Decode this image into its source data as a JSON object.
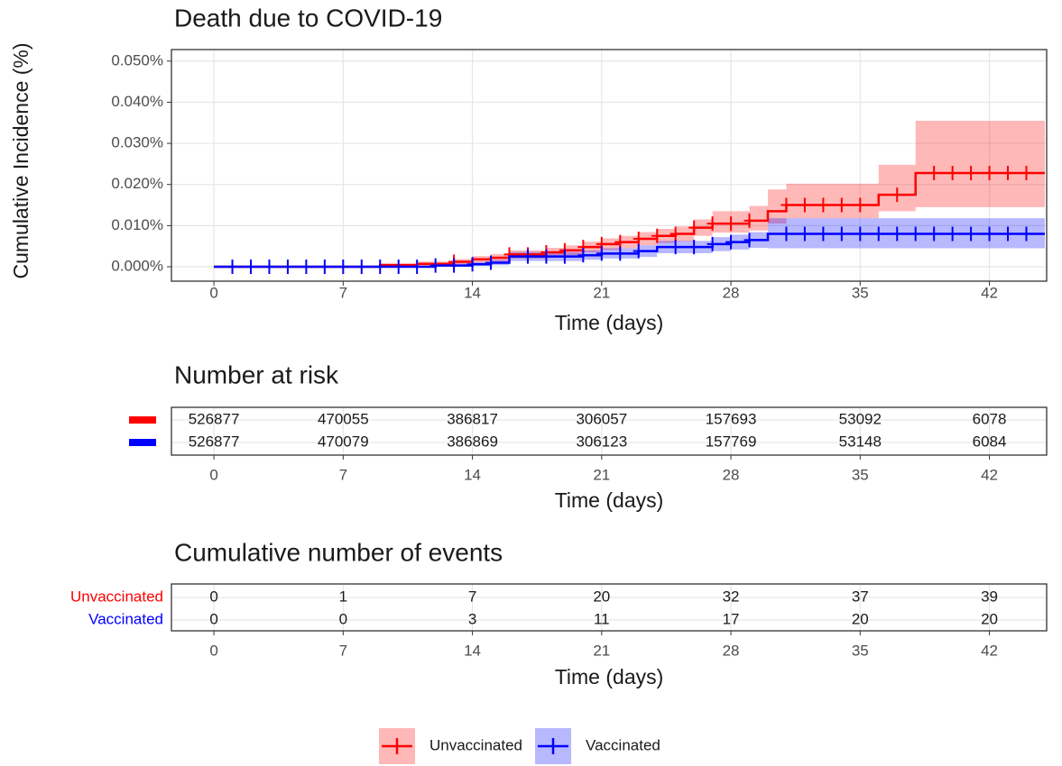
{
  "chart_data": [
    {
      "type": "step",
      "title": "Death due to COVID-19",
      "y_label": "Cumulative Incidence (%)",
      "x_label": "Time (days)",
      "xlim": [
        -2.3,
        45.1
      ],
      "ylim": [
        -0.0035,
        0.0528
      ],
      "xticks": [
        0,
        7,
        14,
        21,
        28,
        35,
        42
      ],
      "yticks": [
        {
          "value": 0,
          "label": "0.000%"
        },
        {
          "value": 0.01,
          "label": "0.010%"
        },
        {
          "value": 0.02,
          "label": "0.020%"
        },
        {
          "value": 0.03,
          "label": "0.030%"
        },
        {
          "value": 0.04,
          "label": "0.040%"
        },
        {
          "value": 0.05,
          "label": "0.050%"
        }
      ],
      "grid": true,
      "legend": "bottom",
      "series": [
        {
          "name": "Unvaccinated",
          "color": "#ff0000",
          "x": [
            0,
            9,
            11,
            13,
            14,
            15,
            16,
            18,
            19,
            20,
            21,
            22,
            23,
            24,
            25,
            26,
            27,
            29,
            30,
            31,
            36,
            38,
            45
          ],
          "values": [
            0,
            0.0004,
            0.0007,
            0.0012,
            0.0018,
            0.0022,
            0.003,
            0.0035,
            0.004,
            0.0048,
            0.0055,
            0.006,
            0.0068,
            0.0075,
            0.008,
            0.0095,
            0.0105,
            0.0112,
            0.0135,
            0.015,
            0.0175,
            0.0228,
            0.0228
          ],
          "lower": [
            0,
            0.0001,
            0.0003,
            0.0006,
            0.001,
            0.0013,
            0.002,
            0.0024,
            0.0028,
            0.0035,
            0.0041,
            0.0045,
            0.0052,
            0.0058,
            0.0062,
            0.0075,
            0.0083,
            0.0088,
            0.0105,
            0.0118,
            0.0135,
            0.0145,
            0.0145
          ],
          "upper": [
            0,
            0.0009,
            0.0013,
            0.0019,
            0.0026,
            0.0031,
            0.004,
            0.0046,
            0.0052,
            0.0061,
            0.0069,
            0.0075,
            0.0084,
            0.0092,
            0.0098,
            0.0115,
            0.0135,
            0.0148,
            0.0188,
            0.0202,
            0.0248,
            0.0355,
            0.0355
          ],
          "censor_x": [
            13,
            16,
            17,
            18,
            19,
            20,
            21,
            22,
            23,
            24,
            25,
            26,
            27,
            28,
            29,
            31,
            32,
            33,
            34,
            35,
            37,
            39,
            40,
            41,
            42,
            43,
            44
          ]
        },
        {
          "name": "Vaccinated",
          "color": "#0000ff",
          "x": [
            0,
            12,
            14,
            15,
            16,
            20,
            21,
            23,
            24,
            27,
            28,
            29,
            30,
            45
          ],
          "values": [
            0,
            0.0003,
            0.0006,
            0.001,
            0.0025,
            0.0028,
            0.0032,
            0.0038,
            0.0048,
            0.0055,
            0.006,
            0.0065,
            0.008,
            0.008
          ],
          "lower": [
            0,
            0,
            0.0002,
            0.0004,
            0.0014,
            0.0017,
            0.002,
            0.0024,
            0.0033,
            0.0038,
            0.0042,
            0.0046,
            0.0045,
            0.0045
          ],
          "upper": [
            0,
            0.0008,
            0.0012,
            0.0017,
            0.0036,
            0.004,
            0.0045,
            0.0052,
            0.0063,
            0.0072,
            0.0078,
            0.0084,
            0.0118,
            0.0118
          ],
          "censor_x": [
            1,
            2,
            3,
            4,
            5,
            6,
            7,
            8,
            9,
            10,
            11,
            12,
            13,
            14,
            15,
            17,
            18,
            19,
            20,
            21,
            22,
            23,
            25,
            26,
            27,
            28,
            29,
            31,
            32,
            33,
            34,
            35,
            36,
            37,
            38,
            39,
            40,
            41,
            42,
            43,
            44
          ]
        }
      ]
    },
    {
      "type": "table",
      "title": "Number at risk",
      "x_label": "Time (days)",
      "xlim": [
        -2.3,
        45.1
      ],
      "xticks": [
        0,
        7,
        14,
        21,
        28,
        35,
        42
      ],
      "rows": [
        {
          "values": [
            526877,
            470055,
            386817,
            306057,
            157693,
            53092,
            6078
          ]
        },
        {
          "values": [
            526877,
            470079,
            386869,
            306123,
            157769,
            53148,
            6084
          ]
        }
      ]
    },
    {
      "type": "table",
      "title": "Cumulative number of events",
      "x_label": "Time (days)",
      "xlim": [
        -2.3,
        45.1
      ],
      "xticks": [
        0,
        7,
        14,
        21,
        28,
        35,
        42
      ],
      "rows": [
        {
          "name": "Unvaccinated",
          "values": [
            0,
            1,
            7,
            20,
            32,
            37,
            39
          ]
        },
        {
          "name": "Vaccinated",
          "values": [
            0,
            0,
            3,
            11,
            17,
            20,
            20
          ]
        }
      ]
    }
  ]
}
